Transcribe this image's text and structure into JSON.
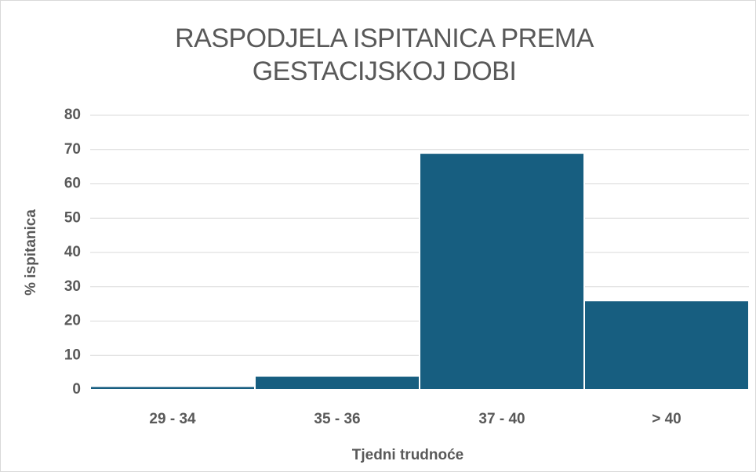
{
  "chart_data": {
    "type": "bar",
    "title": "RASPODJELA ISPITANICA PREMA GESTACIJSKOJ DOBI",
    "x_label": "Tjedni trudnoće",
    "y_label": "% ispitanica",
    "categories": [
      "29 - 34",
      "35 - 36",
      "37 - 40",
      "> 40"
    ],
    "values": [
      1,
      4,
      69,
      26
    ],
    "color": "#175e80",
    "ylim": [
      0,
      80
    ],
    "yticks": [
      0,
      10,
      20,
      30,
      40,
      50,
      60,
      70,
      80
    ],
    "grid": true
  }
}
